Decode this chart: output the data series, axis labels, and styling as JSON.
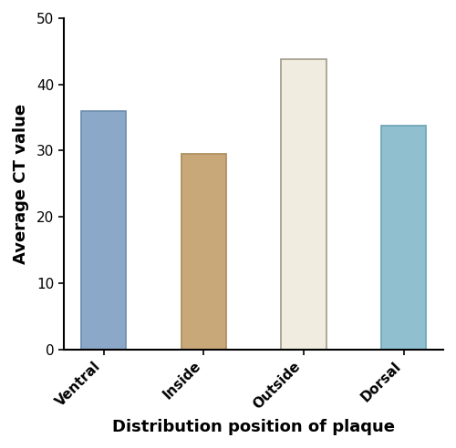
{
  "categories": [
    "Ventral",
    "Inside",
    "Outside",
    "Dorsal"
  ],
  "values": [
    36.0,
    29.5,
    43.8,
    33.8
  ],
  "bar_colors": [
    "#8ba8c8",
    "#c8a878",
    "#f0ece0",
    "#90c0d0"
  ],
  "bar_edgecolors": [
    "#7090b0",
    "#b09060",
    "#a8a090",
    "#70a8b8"
  ],
  "title": "",
  "xlabel": "Distribution position of plaque",
  "ylabel": "Average CT value",
  "ylim": [
    0,
    50
  ],
  "yticks": [
    0,
    10,
    20,
    30,
    40,
    50
  ],
  "bar_width": 0.45,
  "xlabel_fontsize": 13,
  "ylabel_fontsize": 13,
  "tick_fontsize": 11,
  "background_color": "#ffffff",
  "spine_linewidth": 1.5
}
